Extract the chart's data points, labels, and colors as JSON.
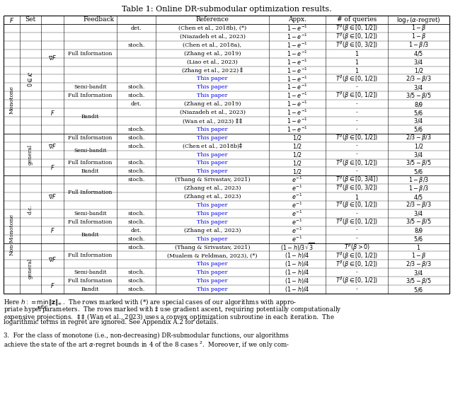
{
  "title": "Table 1: Online DR-submodular optimization results.",
  "blue": "#0000EE",
  "black": "#000000",
  "title_fs": 8.0,
  "header_fs": 6.5,
  "cell_fs": 5.8,
  "footnote_fs": 6.2,
  "rows": [
    {
      "f": "Monotone",
      "set": "$0\\in\\mathcal{K}$",
      "fb1": "$\\nabla F$",
      "fb2": "Full Information",
      "fb3": "det.",
      "ref": "(Chen et al., 2018b), (*)",
      "appx": "$1-e^{-1}$",
      "q": "$T^\\beta(\\beta\\in[0,1/2])$",
      "r": "$1-\\beta$",
      "blue": false
    },
    {
      "f": "",
      "set": "",
      "fb1": "",
      "fb2": "",
      "fb3": "",
      "ref": "(Niazadeh et al., 2023)",
      "appx": "$1-e^{-1}$",
      "q": "$T^\\beta(\\beta\\in[0,1/2])$",
      "r": "$1-\\beta$",
      "blue": false
    },
    {
      "f": "",
      "set": "",
      "fb1": "",
      "fb2": "",
      "fb3": "stoch.",
      "ref": "(Chen et al., 2018a),",
      "appx": "$1-e^{-1}$",
      "q": "$T^\\beta(\\beta\\in[0,3/2])$",
      "r": "$1-\\beta/3$",
      "blue": false
    },
    {
      "f": "",
      "set": "",
      "fb1": "",
      "fb2": "",
      "fb3": "",
      "ref": "(Zhang et al., 2019)",
      "appx": "$1-e^{-1}$",
      "q": "$1$",
      "r": "$4/5$",
      "blue": false
    },
    {
      "f": "",
      "set": "",
      "fb1": "",
      "fb2": "",
      "fb3": "",
      "ref": "(Liao et al., 2023)",
      "appx": "$1-e^{-1}$",
      "q": "$1$",
      "r": "$3/4$",
      "blue": false
    },
    {
      "f": "",
      "set": "",
      "fb1": "",
      "fb2": "",
      "fb3": "",
      "ref": "(Zhang et al., 2022) $\\ddagger$",
      "appx": "$1-e^{-1}$",
      "q": "$1$",
      "r": "$1/2$",
      "blue": false
    },
    {
      "f": "",
      "set": "",
      "fb1": "",
      "fb2": "",
      "fb3": "",
      "ref": "This paper",
      "appx": "$1-e^{-1}$",
      "q": "$T^\\beta(\\beta\\in[0,1/2])$",
      "r": "$2/3-\\beta/3$",
      "blue": true
    },
    {
      "f": "",
      "set": "",
      "fb1": "",
      "fb2": "Semi-bandit",
      "fb3": "stoch.",
      "ref": "This paper",
      "appx": "$1-e^{-1}$",
      "q": "-",
      "r": "$3/4$",
      "blue": true
    },
    {
      "f": "",
      "set": "",
      "fb1": "$F$",
      "fb2": "Full Information",
      "fb3": "stoch.",
      "ref": "This paper",
      "appx": "$1-e^{-1}$",
      "q": "$T^\\beta(\\beta\\in[0,1/2])$",
      "r": "$3/5-\\beta/5$",
      "blue": true
    },
    {
      "f": "",
      "set": "",
      "fb1": "",
      "fb2": "Bandit",
      "fb3": "det.",
      "ref": "(Zhang et al., 2019)",
      "appx": "$1-e^{-1}$",
      "q": "-",
      "r": "$8/9$",
      "blue": false
    },
    {
      "f": "",
      "set": "",
      "fb1": "",
      "fb2": "",
      "fb3": "",
      "ref": "(Niazadeh et al., 2023)",
      "appx": "$1-e^{-1}$",
      "q": "-",
      "r": "$5/6$",
      "blue": false
    },
    {
      "f": "",
      "set": "",
      "fb1": "",
      "fb2": "",
      "fb3": "",
      "ref": "(Wan et al., 2023) $\\ddagger\\ddagger$",
      "appx": "$1-e^{-1}$",
      "q": "-",
      "r": "$3/4$",
      "blue": false
    },
    {
      "f": "",
      "set": "",
      "fb1": "",
      "fb2": "",
      "fb3": "stoch.",
      "ref": "This paper",
      "appx": "$1-e^{-1}$",
      "q": "-",
      "r": "$5/6$",
      "blue": true
    },
    {
      "f": "",
      "set": "general",
      "fb1": "$\\nabla F$",
      "fb2": "Full Information",
      "fb3": "stoch.",
      "ref": "This paper",
      "appx": "$1/2$",
      "q": "$T^\\beta(\\beta\\in[0,1/2])$",
      "r": "$2/3-\\beta/3$",
      "blue": true
    },
    {
      "f": "",
      "set": "",
      "fb1": "",
      "fb2": "Semi-bandit",
      "fb3": "stoch.",
      "ref": "(Chen et al., 2018b)$\\ddagger$",
      "appx": "$1/2$",
      "q": "-",
      "r": "$1/2$",
      "blue": false
    },
    {
      "f": "",
      "set": "",
      "fb1": "",
      "fb2": "",
      "fb3": "",
      "ref": "This paper",
      "appx": "$1/2$",
      "q": "-",
      "r": "$3/4$",
      "blue": true
    },
    {
      "f": "",
      "set": "",
      "fb1": "$F$",
      "fb2": "Full Information",
      "fb3": "stoch.",
      "ref": "This paper",
      "appx": "$1/2$",
      "q": "$T^\\beta(\\beta\\in[0,1/2])$",
      "r": "$3/5-\\beta/5$",
      "blue": true
    },
    {
      "f": "",
      "set": "",
      "fb1": "",
      "fb2": "Bandit",
      "fb3": "stoch.",
      "ref": "This paper",
      "appx": "$1/2$",
      "q": "-",
      "r": "$5/6$",
      "blue": true
    },
    {
      "f": "Non-Monotone",
      "set": "d.c.",
      "fb1": "$\\nabla F$",
      "fb2": "Full Information",
      "fb3": "stoch.",
      "ref": "(Thang & Srivastav, 2021)",
      "appx": "$e^{-1}$",
      "q": "$T^\\beta(\\beta\\in[0,3/4])$",
      "r": "$1-\\beta/3$",
      "blue": false
    },
    {
      "f": "",
      "set": "",
      "fb1": "",
      "fb2": "",
      "fb3": "",
      "ref": "(Zhang et al., 2023)",
      "appx": "$e^{-1}$",
      "q": "$T^\\beta(\\beta\\in[0,3/2])$",
      "r": "$1-\\beta/3$",
      "blue": false
    },
    {
      "f": "",
      "set": "",
      "fb1": "",
      "fb2": "",
      "fb3": "",
      "ref": "(Zhang et al., 2023)",
      "appx": "$e^{-1}$",
      "q": "$1$",
      "r": "$4/5$",
      "blue": false
    },
    {
      "f": "",
      "set": "",
      "fb1": "",
      "fb2": "",
      "fb3": "",
      "ref": "This paper",
      "appx": "$e^{-1}$",
      "q": "$T^\\beta(\\beta\\in[0,1/2])$",
      "r": "$2/3-\\beta/3$",
      "blue": true
    },
    {
      "f": "",
      "set": "",
      "fb1": "",
      "fb2": "Semi-bandit",
      "fb3": "stoch.",
      "ref": "This paper",
      "appx": "$e^{-1}$",
      "q": "-",
      "r": "$3/4$",
      "blue": true
    },
    {
      "f": "",
      "set": "",
      "fb1": "$F$",
      "fb2": "Full Information",
      "fb3": "stoch.",
      "ref": "This paper",
      "appx": "$e^{-1}$",
      "q": "$T^\\beta(\\beta\\in[0,1/2])$",
      "r": "$3/5-\\beta/5$",
      "blue": true
    },
    {
      "f": "",
      "set": "",
      "fb1": "",
      "fb2": "Bandit",
      "fb3": "det.",
      "ref": "(Zhang et al., 2023)",
      "appx": "$e^{-1}$",
      "q": "-",
      "r": "$8/9$",
      "blue": false
    },
    {
      "f": "",
      "set": "",
      "fb1": "",
      "fb2": "",
      "fb3": "stoch.",
      "ref": "This paper",
      "appx": "$e^{-1}$",
      "q": "-",
      "r": "$5/6$",
      "blue": true
    },
    {
      "f": "",
      "set": "general",
      "fb1": "$\\nabla F$",
      "fb2": "Full Information",
      "fb3": "stoch.",
      "ref": "(Thang & Srivastav, 2021)",
      "appx": "$(1-h)/3\\sqrt{3}$",
      "q": "$T^\\beta(\\beta>0)$",
      "r": "$1$",
      "blue": false
    },
    {
      "f": "",
      "set": "",
      "fb1": "",
      "fb2": "",
      "fb3": "",
      "ref": "(Mualem & Feldman, 2023), (*)",
      "appx": "$(1-h)/4$",
      "q": "$T^\\beta(\\beta\\in[0,1/2])$",
      "r": "$1-\\beta$",
      "blue": false
    },
    {
      "f": "",
      "set": "",
      "fb1": "",
      "fb2": "",
      "fb3": "",
      "ref": "This paper",
      "appx": "$(1-h)/4$",
      "q": "$T^\\beta(\\beta\\in[0,1/2])$",
      "r": "$2/3-\\beta/3$",
      "blue": true
    },
    {
      "f": "",
      "set": "",
      "fb1": "",
      "fb2": "Semi-bandit",
      "fb3": "stoch.",
      "ref": "This paper",
      "appx": "$(1-h)/4$",
      "q": "-",
      "r": "$3/4$",
      "blue": true
    },
    {
      "f": "",
      "set": "",
      "fb1": "$F$",
      "fb2": "Full Information",
      "fb3": "stoch.",
      "ref": "This paper",
      "appx": "$(1-h)/4$",
      "q": "$T^\\beta(\\beta\\in[0,1/2])$",
      "r": "$3/5-\\beta/5$",
      "blue": true
    },
    {
      "f": "",
      "set": "",
      "fb1": "",
      "fb2": "Bandit",
      "fb3": "stoch.",
      "ref": "This paper",
      "appx": "$(1-h)/4$",
      "q": "-",
      "r": "$5/6$",
      "blue": true
    }
  ],
  "footnote1": "Here $h  :=  \\min_{\\mathbf{z}\\in\\mathcal{K}} \\|\\mathbf{z}\\|_\\infty$.  The rows marked with (*) are special cases of our algorithms with appro-",
  "footnote2": "priate hyperparameters.  The rows marked with $\\ddagger$ use gradient ascent, requiring potentially computationally",
  "footnote3": "expensive projections.  $\\ddagger\\ddagger$ (Wan et al., 2023) uses a convex optimization subroutine in each iteration.  The",
  "footnote4": "logarithmic terms in regret are ignored. See Appendix A.2 for details.",
  "sec3line1": "3.  For the class of monotone (i.e., non-decreasing) DR-submodular functions, our algorithms",
  "sec3line2": "achieve the state of the art $\\alpha$-regret bounds in 4 of the 8 cases $^2$.  Moreover, if we only com-"
}
